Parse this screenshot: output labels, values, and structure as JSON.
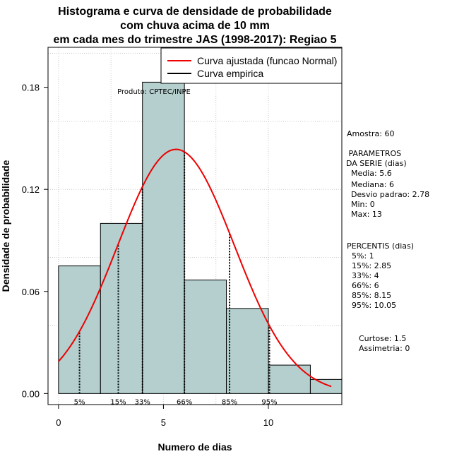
{
  "chart_data": {
    "type": "bar",
    "title_lines": [
      "Histograma e curva de densidade de probabilidade",
      "com chuva acima de 10 mm",
      "em cada mes do trimestre JAS (1998-2017): Regiao 5"
    ],
    "xlabel": "Numero de dias",
    "ylabel": "Densidade de probabilidade",
    "xlim": [
      -0.5,
      13.5
    ],
    "ylim": [
      -0.0065,
      0.2035
    ],
    "x_ticks": [
      0,
      5,
      10
    ],
    "y_ticks": [
      0.0,
      0.06,
      0.12,
      0.18
    ],
    "y_tick_labels": [
      "0.00",
      "0.06",
      "0.12",
      "0.18"
    ],
    "grid": true,
    "bins": [
      {
        "start": 0,
        "end": 2,
        "density": 0.075
      },
      {
        "start": 2,
        "end": 4,
        "density": 0.1
      },
      {
        "start": 4,
        "end": 6,
        "density": 0.183
      },
      {
        "start": 6,
        "end": 8,
        "density": 0.0667
      },
      {
        "start": 8,
        "end": 10,
        "density": 0.05
      },
      {
        "start": 10,
        "end": 12,
        "density": 0.0167
      },
      {
        "start": 12,
        "end": 14,
        "density": 0.0083
      }
    ],
    "series": [
      {
        "name": "Curva ajustada (funcao Normal)",
        "distribution": "normal",
        "mean": 5.6,
        "sd": 2.78,
        "x_range": [
          0,
          13
        ],
        "color": "#ee0000"
      }
    ],
    "percentile_markers": [
      {
        "label": "5%",
        "x": 1
      },
      {
        "label": "15%",
        "x": 2.85
      },
      {
        "label": "33%",
        "x": 4
      },
      {
        "label": "66%",
        "x": 6
      },
      {
        "label": "85%",
        "x": 8.15
      },
      {
        "label": "95%",
        "x": 10.05
      }
    ],
    "legend": [
      {
        "label": "Curva ajustada (funcao Normal)",
        "color": "#ee0000"
      },
      {
        "label": "Curva empirica",
        "color": "#000000"
      }
    ],
    "legend_position": "top-right",
    "product_label": "Produto: CPTEC/INPE",
    "bar_color": "#b5cfcf"
  },
  "stats": {
    "amostra": "Amostra: 60",
    "parametros_title": " PARAMETROS",
    "parametros_subtitle": "DA SERIE (dias)",
    "media": "  Media: 5.6",
    "mediana": "  Mediana: 6",
    "desvio": "  Desvio padrao: 2.78",
    "min": "  Min: 0",
    "max": "  Max: 13",
    "percentis_title": "PERCENTIS (dias)",
    "p5": "  5%: 1",
    "p15": "  15%: 2.85",
    "p33": "  33%: 4",
    "p66": "  66%: 6",
    "p85": "  85%: 8.15",
    "p95": "  95%: 10.05",
    "curtose": "Curtose: 1.5",
    "assimetria": "Assimetria: 0"
  }
}
